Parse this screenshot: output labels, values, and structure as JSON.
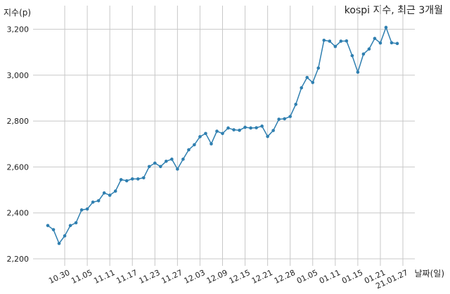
{
  "chart_data": {
    "type": "line",
    "title": "kospi 지수, 최근 3개월",
    "xlabel": "날짜(일)",
    "ylabel": "지수(p)",
    "ylim": [
      2200,
      3260
    ],
    "yticks": [
      2200,
      2400,
      2600,
      2800,
      3000,
      3200
    ],
    "ytick_labels": [
      "2,200",
      "2,400",
      "2,600",
      "2,800",
      "3,000",
      "3,200"
    ],
    "xtick_labels": [
      "10.30",
      "11.05",
      "11.11",
      "11.17",
      "11.23",
      "11.27",
      "12.03",
      "12.09",
      "12.15",
      "12.21",
      "12.28",
      "01.05",
      "01.11",
      "01.15",
      "01.21",
      "21.01.27"
    ],
    "xtick_index": [
      3,
      7,
      11,
      15,
      19,
      23,
      27,
      31,
      35,
      39,
      43,
      47,
      51,
      55,
      59,
      63
    ],
    "grid": true,
    "series": [
      {
        "values": [
          2345,
          2327,
          2267,
          2300,
          2345,
          2357,
          2413,
          2417,
          2447,
          2453,
          2487,
          2477,
          2495,
          2545,
          2540,
          2548,
          2548,
          2553,
          2602,
          2617,
          2602,
          2625,
          2634,
          2591,
          2634,
          2675,
          2697,
          2732,
          2746,
          2701,
          2756,
          2746,
          2770,
          2762,
          2760,
          2773,
          2770,
          2771,
          2778,
          2733,
          2759,
          2808,
          2810,
          2820,
          2873,
          2945,
          2990,
          2968,
          3031,
          3152,
          3148,
          3125,
          3148,
          3149,
          3085,
          3013,
          3092,
          3114,
          3160,
          3140,
          3208,
          3141,
          3138
        ]
      }
    ]
  }
}
